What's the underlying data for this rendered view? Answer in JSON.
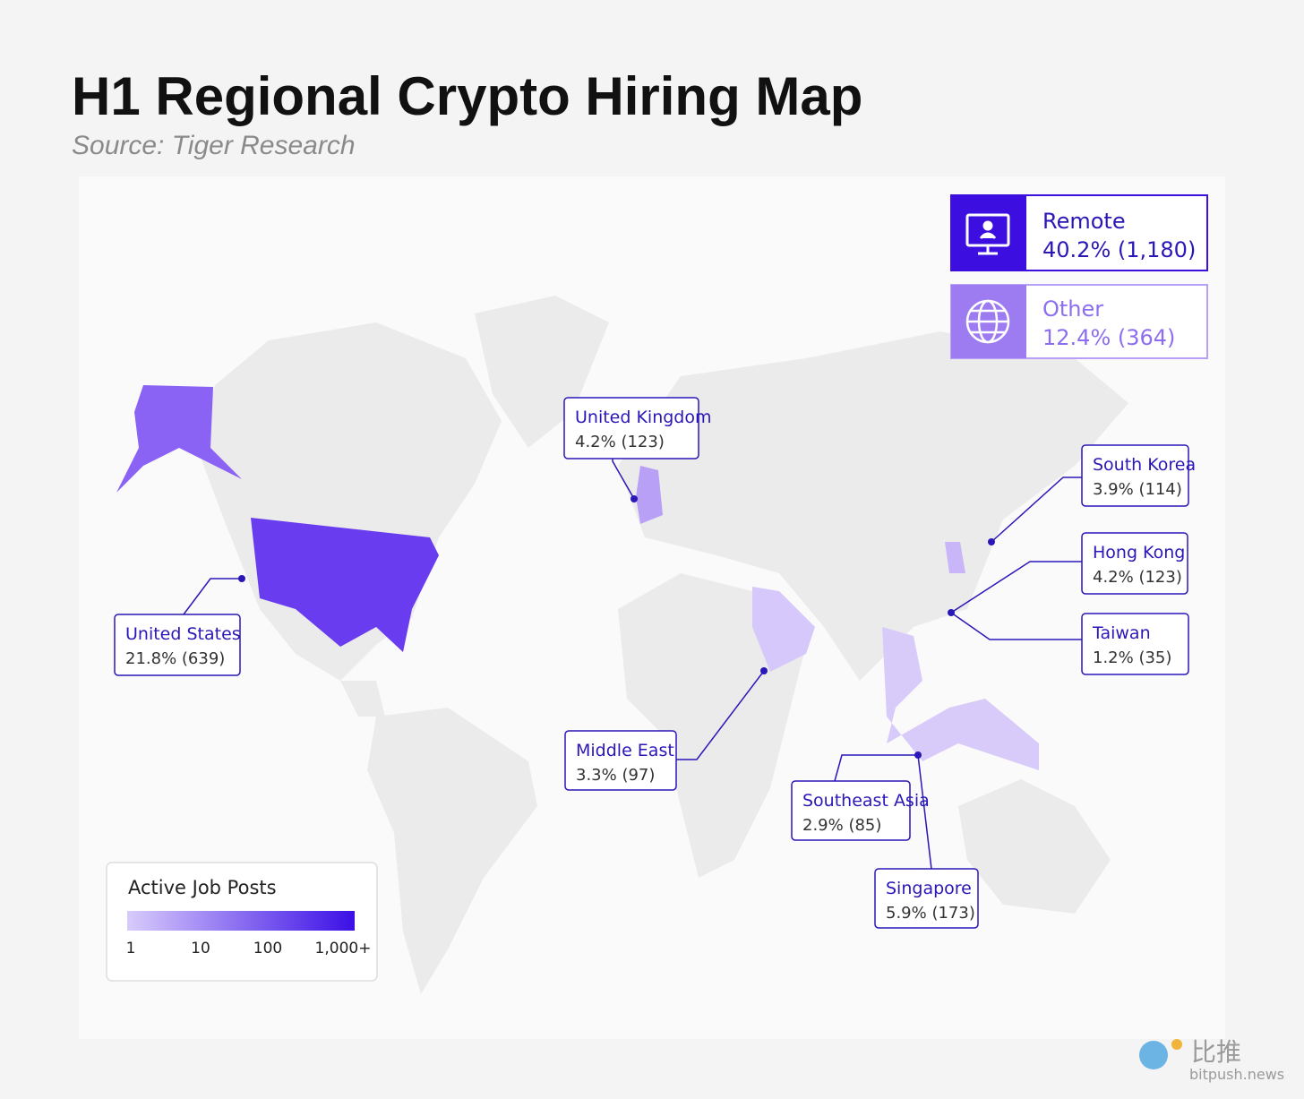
{
  "header": {
    "title": "H1 Regional Crypto Hiring Map",
    "source": "Source: Tiger Research"
  },
  "summary": [
    {
      "label": "Remote",
      "value": "40.2% (1,180)"
    },
    {
      "label": "Other",
      "value": "12.4% (364)"
    }
  ],
  "regions": [
    {
      "name": "United Kingdom",
      "value": "4.2% (123)"
    },
    {
      "name": "United States",
      "value": "21.8% (639)"
    },
    {
      "name": "Middle East",
      "value": "3.3% (97)"
    },
    {
      "name": "Southeast Asia",
      "value": "2.9% (85)"
    },
    {
      "name": "Singapore",
      "value": "5.9% (173)"
    },
    {
      "name": "South Korea",
      "value": "3.9% (114)"
    },
    {
      "name": "Hong Kong",
      "value": "4.2% (123)"
    },
    {
      "name": "Taiwan",
      "value": "1.2% (35)"
    }
  ],
  "legend": {
    "title": "Active Job Posts",
    "ticks": [
      "1",
      "10",
      "100",
      "1,000+"
    ]
  },
  "watermark": {
    "brand": "比推",
    "site": "bitpush.news"
  }
}
